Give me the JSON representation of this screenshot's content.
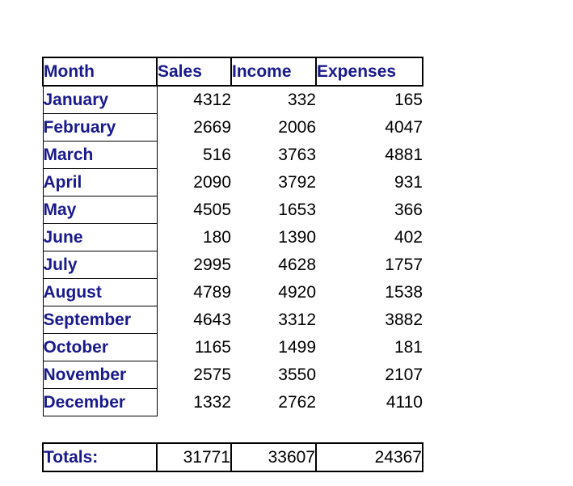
{
  "chart_data": {
    "type": "table",
    "columns": [
      "Month",
      "Sales",
      "Income",
      "Expenses"
    ],
    "rows": [
      [
        "January",
        4312,
        332,
        165
      ],
      [
        "February",
        2669,
        2006,
        4047
      ],
      [
        "March",
        516,
        3763,
        4881
      ],
      [
        "April",
        2090,
        3792,
        931
      ],
      [
        "May",
        4505,
        1653,
        366
      ],
      [
        "June",
        180,
        1390,
        402
      ],
      [
        "July",
        2995,
        4628,
        1757
      ],
      [
        "August",
        4789,
        4920,
        1538
      ],
      [
        "September",
        4643,
        3312,
        3882
      ],
      [
        "October",
        1165,
        1499,
        181
      ],
      [
        "November",
        2575,
        3550,
        2107
      ],
      [
        "December",
        1332,
        2762,
        4110
      ]
    ],
    "totals": [
      "Totals:",
      31771,
      33607,
      24367
    ]
  },
  "colors": {
    "accent_text": "#19198C",
    "number_text": "#000000",
    "border": "#000000",
    "background": "#FFFFFF"
  }
}
